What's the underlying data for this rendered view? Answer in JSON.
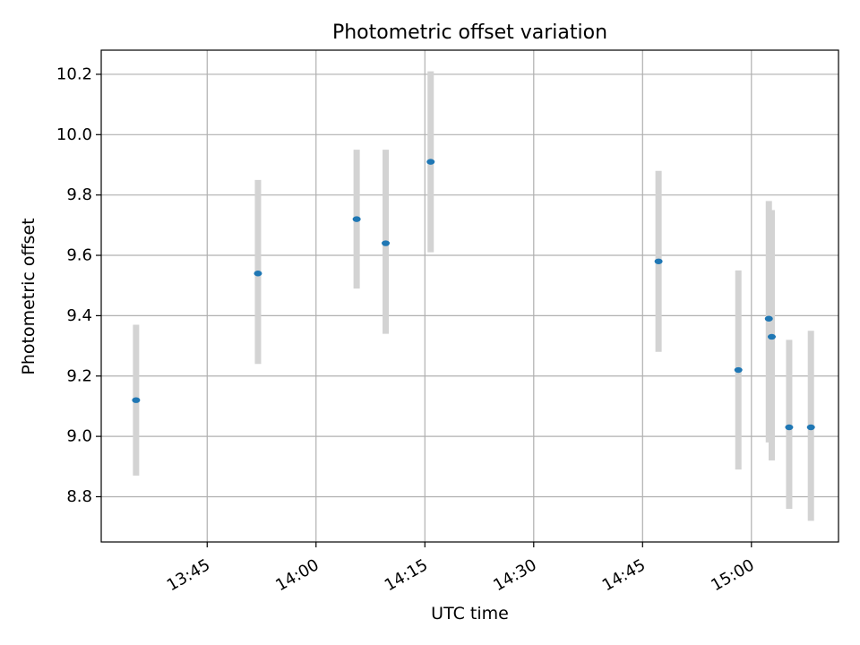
{
  "chart_data": {
    "type": "scatter",
    "title": "Photometric offset variation",
    "xlabel": "UTC time",
    "ylabel": "Photometric offset",
    "x_axis": "time",
    "xlim": [
      "13:30:24",
      "15:12:00"
    ],
    "ylim": [
      8.65,
      10.28
    ],
    "xticks": [
      "13:45",
      "14:00",
      "14:15",
      "14:30",
      "14:45",
      "15:00"
    ],
    "yticks": [
      8.8,
      9.0,
      9.2,
      9.4,
      9.6,
      9.8,
      10.0,
      10.2
    ],
    "grid": true,
    "legend": "none",
    "colors": {
      "point": "#1f77b4",
      "errorbar": "#d3d3d3",
      "grid": "#b0b0b0",
      "axes": "#000000"
    },
    "series": [
      {
        "points": [
          {
            "x": "13:35:12",
            "y": 9.12,
            "ylow": 8.87,
            "yhigh": 9.37
          },
          {
            "x": "13:52:00",
            "y": 9.54,
            "ylow": 9.24,
            "yhigh": 9.85
          },
          {
            "x": "14:05:36",
            "y": 9.72,
            "ylow": 9.49,
            "yhigh": 9.95
          },
          {
            "x": "14:09:36",
            "y": 9.64,
            "ylow": 9.34,
            "yhigh": 9.95
          },
          {
            "x": "14:15:48",
            "y": 9.91,
            "ylow": 9.61,
            "yhigh": 10.21
          },
          {
            "x": "14:47:12",
            "y": 9.58,
            "ylow": 9.28,
            "yhigh": 9.88
          },
          {
            "x": "14:58:12",
            "y": 9.22,
            "ylow": 8.89,
            "yhigh": 9.55
          },
          {
            "x": "15:02:24",
            "y": 9.39,
            "ylow": 8.98,
            "yhigh": 9.78
          },
          {
            "x": "15:02:48",
            "y": 9.33,
            "ylow": 8.92,
            "yhigh": 9.75
          },
          {
            "x": "15:05:12",
            "y": 9.03,
            "ylow": 8.76,
            "yhigh": 9.32
          },
          {
            "x": "15:08:12",
            "y": 9.03,
            "ylow": 8.72,
            "yhigh": 9.35
          }
        ]
      }
    ]
  }
}
